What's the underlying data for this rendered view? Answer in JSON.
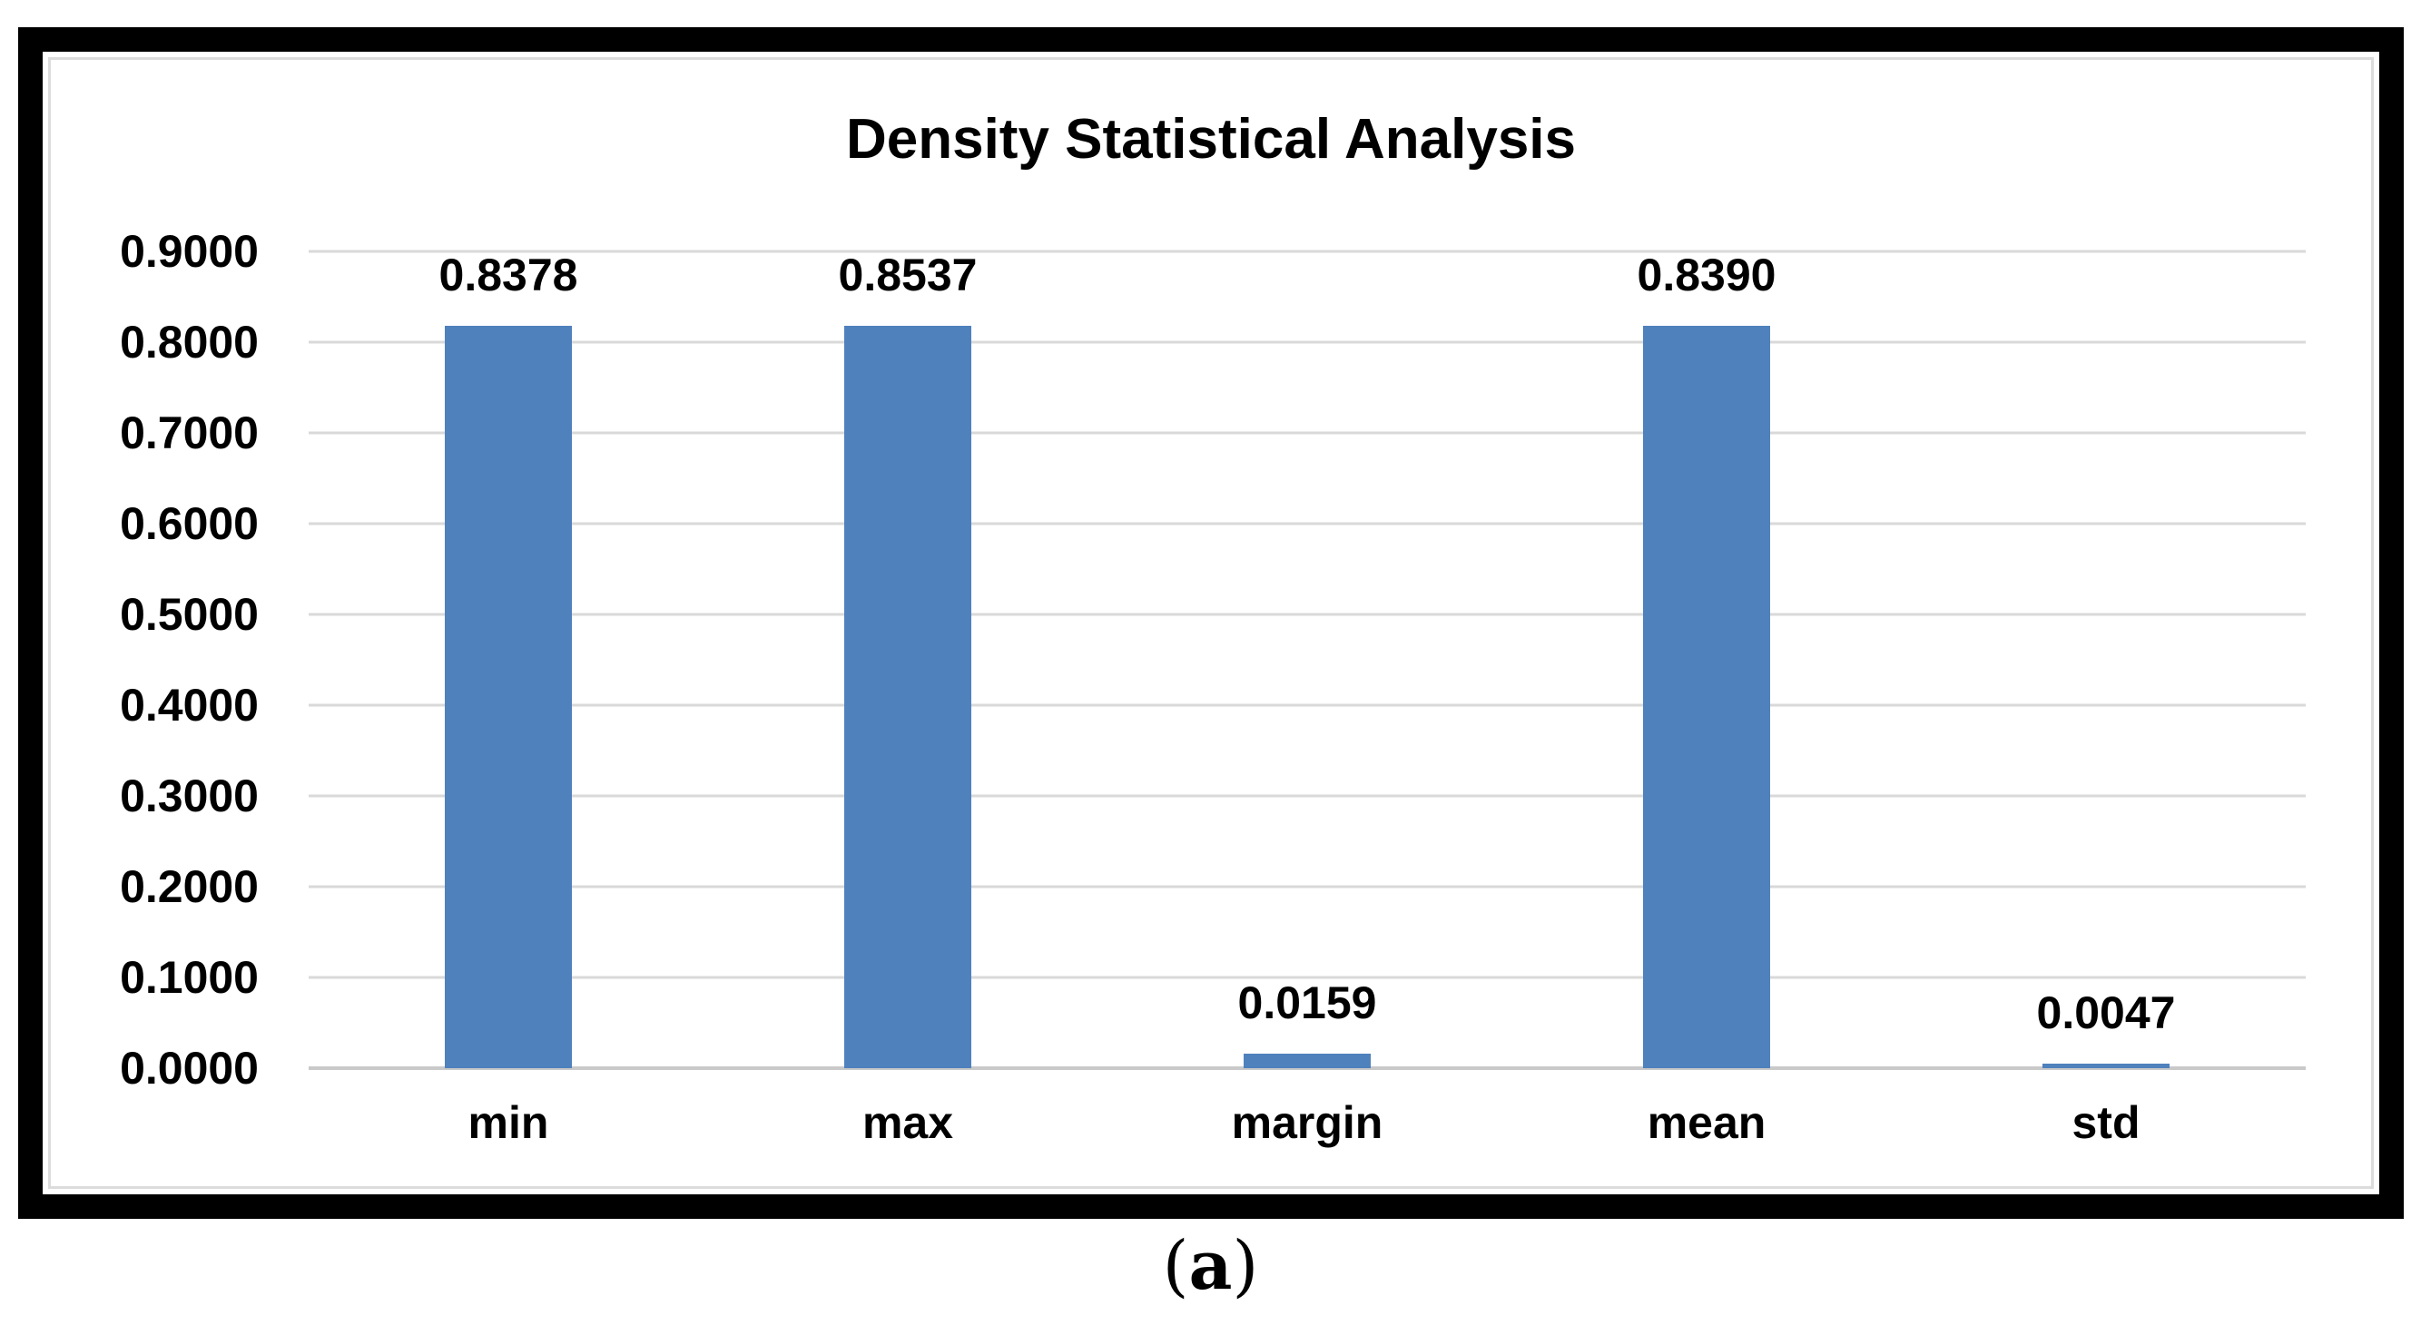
{
  "figure": {
    "caption": {
      "open_paren": "(",
      "letter": "a",
      "close_paren": ")"
    }
  },
  "chart_data": {
    "type": "bar",
    "title": "Density Statistical Analysis",
    "categories": [
      "min",
      "max",
      "margin",
      "mean",
      "std"
    ],
    "values": [
      0.8378,
      0.8537,
      0.0159,
      0.839,
      0.0047
    ],
    "value_labels": [
      "0.8378",
      "0.8537",
      "0.0159",
      "0.8390",
      "0.0047"
    ],
    "y_ticks": [
      "0.9000",
      "0.8000",
      "0.7000",
      "0.6000",
      "0.5000",
      "0.4000",
      "0.3000",
      "0.2000",
      "0.1000",
      "0.0000"
    ],
    "ylim": [
      0,
      0.9
    ],
    "xlabel": "",
    "ylabel": "",
    "grid": "horizontal",
    "legend": "none",
    "bar_color": "#4F81BD",
    "gridline_color": "#D9D9D9",
    "axisline_color": "#C9C9C9",
    "text_color": "#000000"
  }
}
